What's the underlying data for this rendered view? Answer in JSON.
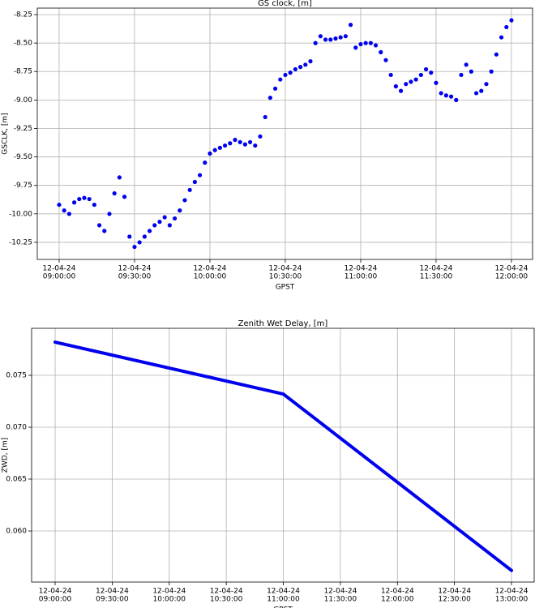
{
  "chart_data": [
    {
      "type": "scatter",
      "title": "GS clock, [m]",
      "x_label": "GPST",
      "y_label": "GSCLK, [m]",
      "color": "#0000ee",
      "grid": true,
      "xlim": [
        "12-04-24 08:51:18",
        "12-04-24 12:08:24"
      ],
      "ylim": [
        -10.4,
        -8.193
      ],
      "xticks": [
        {
          "value": "12-04-24 09:00:00",
          "label": [
            "12-04-24",
            "09:00:00"
          ]
        },
        {
          "value": "12-04-24 09:30:00",
          "label": [
            "12-04-24",
            "09:30:00"
          ]
        },
        {
          "value": "12-04-24 10:00:00",
          "label": [
            "12-04-24",
            "10:00:00"
          ]
        },
        {
          "value": "12-04-24 10:30:00",
          "label": [
            "12-04-24",
            "10:30:00"
          ]
        },
        {
          "value": "12-04-24 11:00:00",
          "label": [
            "12-04-24",
            "11:00:00"
          ]
        },
        {
          "value": "12-04-24 11:30:00",
          "label": [
            "12-04-24",
            "11:30:00"
          ]
        },
        {
          "value": "12-04-24 12:00:00",
          "label": [
            "12-04-24",
            "12:00:00"
          ]
        }
      ],
      "yticks": [
        -8.25,
        {
          "value": -8.5,
          "label": "-8.50"
        },
        -8.75,
        {
          "value": -9.0,
          "label": "-9.00"
        },
        -9.25,
        {
          "value": -9.5,
          "label": "-9.50"
        },
        -9.75,
        {
          "value": -10.0,
          "label": "-10.00"
        },
        -10.25
      ],
      "x": [
        "12-04-24 09:00:00",
        "12-04-24 09:02:00",
        "12-04-24 09:04:00",
        "12-04-24 09:06:00",
        "12-04-24 09:08:00",
        "12-04-24 09:10:00",
        "12-04-24 09:12:00",
        "12-04-24 09:14:00",
        "12-04-24 09:16:00",
        "12-04-24 09:18:00",
        "12-04-24 09:20:00",
        "12-04-24 09:22:00",
        "12-04-24 09:24:00",
        "12-04-24 09:26:00",
        "12-04-24 09:28:00",
        "12-04-24 09:30:00",
        "12-04-24 09:32:00",
        "12-04-24 09:34:00",
        "12-04-24 09:36:00",
        "12-04-24 09:38:00",
        "12-04-24 09:40:00",
        "12-04-24 09:42:00",
        "12-04-24 09:44:00",
        "12-04-24 09:46:00",
        "12-04-24 09:48:00",
        "12-04-24 09:50:00",
        "12-04-24 09:52:00",
        "12-04-24 09:54:00",
        "12-04-24 09:56:00",
        "12-04-24 09:58:00",
        "12-04-24 10:00:00",
        "12-04-24 10:02:00",
        "12-04-24 10:04:00",
        "12-04-24 10:06:00",
        "12-04-24 10:08:00",
        "12-04-24 10:10:00",
        "12-04-24 10:12:00",
        "12-04-24 10:14:00",
        "12-04-24 10:16:00",
        "12-04-24 10:18:00",
        "12-04-24 10:20:00",
        "12-04-24 10:22:00",
        "12-04-24 10:24:00",
        "12-04-24 10:26:00",
        "12-04-24 10:28:00",
        "12-04-24 10:30:00",
        "12-04-24 10:32:00",
        "12-04-24 10:34:00",
        "12-04-24 10:36:00",
        "12-04-24 10:38:00",
        "12-04-24 10:40:00",
        "12-04-24 10:42:00",
        "12-04-24 10:44:00",
        "12-04-24 10:46:00",
        "12-04-24 10:48:00",
        "12-04-24 10:50:00",
        "12-04-24 10:52:00",
        "12-04-24 10:54:00",
        "12-04-24 10:56:00",
        "12-04-24 10:58:00",
        "12-04-24 11:00:00",
        "12-04-24 11:02:00",
        "12-04-24 11:04:00",
        "12-04-24 11:06:00",
        "12-04-24 11:08:00",
        "12-04-24 11:10:00",
        "12-04-24 11:12:00",
        "12-04-24 11:14:00",
        "12-04-24 11:16:00",
        "12-04-24 11:18:00",
        "12-04-24 11:20:00",
        "12-04-24 11:22:00",
        "12-04-24 11:24:00",
        "12-04-24 11:26:00",
        "12-04-24 11:28:00",
        "12-04-24 11:30:00",
        "12-04-24 11:32:00",
        "12-04-24 11:34:00",
        "12-04-24 11:36:00",
        "12-04-24 11:38:00",
        "12-04-24 11:40:00",
        "12-04-24 11:42:00",
        "12-04-24 11:44:00",
        "12-04-24 11:46:00",
        "12-04-24 11:48:00",
        "12-04-24 11:50:00",
        "12-04-24 11:52:00",
        "12-04-24 11:54:00",
        "12-04-24 11:56:00",
        "12-04-24 11:58:00",
        "12-04-24 12:00:00"
      ],
      "values": [
        -9.92,
        -9.97,
        -10.0,
        -9.9,
        -9.87,
        -9.86,
        -9.87,
        -9.92,
        -10.1,
        -10.15,
        -10.0,
        -9.82,
        -9.68,
        -9.85,
        -10.2,
        -10.29,
        -10.25,
        -10.2,
        -10.15,
        -10.1,
        -10.07,
        -10.03,
        -10.1,
        -10.04,
        -9.97,
        -9.88,
        -9.79,
        -9.72,
        -9.66,
        -9.55,
        -9.47,
        -9.44,
        -9.42,
        -9.4,
        -9.38,
        -9.35,
        -9.37,
        -9.39,
        -9.37,
        -9.4,
        -9.32,
        -9.15,
        -8.98,
        -8.9,
        -8.82,
        -8.78,
        -8.76,
        -8.73,
        -8.71,
        -8.69,
        -8.66,
        -8.5,
        -8.44,
        -8.47,
        -8.47,
        -8.46,
        -8.45,
        -8.44,
        -8.34,
        -8.54,
        -8.51,
        -8.5,
        -8.5,
        -8.52,
        -8.58,
        -8.65,
        -8.78,
        -8.88,
        -8.92,
        -8.86,
        -8.84,
        -8.82,
        -8.78,
        -8.73,
        -8.76,
        -8.85,
        -8.94,
        -8.96,
        -8.97,
        -9.0,
        -8.78,
        -8.69,
        -8.75,
        -8.94,
        -8.92,
        -8.86,
        -8.75,
        -8.6,
        -8.45,
        -8.36,
        -8.3
      ]
    },
    {
      "type": "line",
      "title": "Zenith Wet Delay, [m]",
      "x_label": "GPST",
      "y_label": "ZWD, [m]",
      "color": "#0000ee",
      "grid": true,
      "xlim": [
        "12-04-24 08:47:38",
        "12-04-24 13:11:56"
      ],
      "ylim": [
        0.05508,
        0.07953
      ],
      "xticks": [
        {
          "value": "12-04-24 09:00:00",
          "label": [
            "12-04-24",
            "09:00:00"
          ]
        },
        {
          "value": "12-04-24 09:30:00",
          "label": [
            "12-04-24",
            "09:30:00"
          ]
        },
        {
          "value": "12-04-24 10:00:00",
          "label": [
            "12-04-24",
            "10:00:00"
          ]
        },
        {
          "value": "12-04-24 10:30:00",
          "label": [
            "12-04-24",
            "10:30:00"
          ]
        },
        {
          "value": "12-04-24 11:00:00",
          "label": [
            "12-04-24",
            "11:00:00"
          ]
        },
        {
          "value": "12-04-24 11:30:00",
          "label": [
            "12-04-24",
            "11:30:00"
          ]
        },
        {
          "value": "12-04-24 12:00:00",
          "label": [
            "12-04-24",
            "12:00:00"
          ]
        },
        {
          "value": "12-04-24 12:30:00",
          "label": [
            "12-04-24",
            "12:30:00"
          ]
        },
        {
          "value": "12-04-24 13:00:00",
          "label": [
            "12-04-24",
            "13:00:00"
          ]
        }
      ],
      "yticks": [
        {
          "value": 0.06,
          "label": "0.060"
        },
        0.065,
        {
          "value": 0.07,
          "label": "0.070"
        },
        0.075
      ],
      "x": [
        "12-04-24 09:00:00",
        "12-04-24 11:00:00",
        "12-04-24 13:00:00"
      ],
      "values": [
        0.0782,
        0.0732,
        0.0562
      ]
    }
  ]
}
